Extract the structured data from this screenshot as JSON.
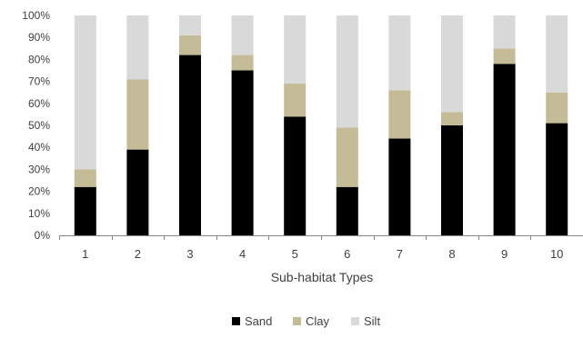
{
  "chart_data": {
    "type": "bar",
    "stacked": true,
    "percent_stacked": true,
    "categories": [
      "1",
      "2",
      "3",
      "4",
      "5",
      "6",
      "7",
      "8",
      "9",
      "10"
    ],
    "series": [
      {
        "name": "Sand",
        "color": "#000000",
        "values": [
          22,
          39,
          82,
          75,
          54,
          22,
          44,
          50,
          78,
          51
        ]
      },
      {
        "name": "Clay",
        "color": "#c4bc96",
        "values": [
          8,
          32,
          9,
          7,
          15,
          27,
          22,
          6,
          7,
          14
        ]
      },
      {
        "name": "Silt",
        "color": "#d9d9d9",
        "values": [
          70,
          29,
          9,
          18,
          31,
          51,
          34,
          44,
          15,
          35
        ]
      }
    ],
    "y_ticks": [
      "0%",
      "10%",
      "20%",
      "30%",
      "40%",
      "50%",
      "60%",
      "70%",
      "80%",
      "90%",
      "100%"
    ],
    "ylim": [
      0,
      100
    ],
    "title": "",
    "xlabel": "Sub-habitat Types",
    "ylabel": "",
    "grid": false,
    "legend_position": "bottom"
  }
}
